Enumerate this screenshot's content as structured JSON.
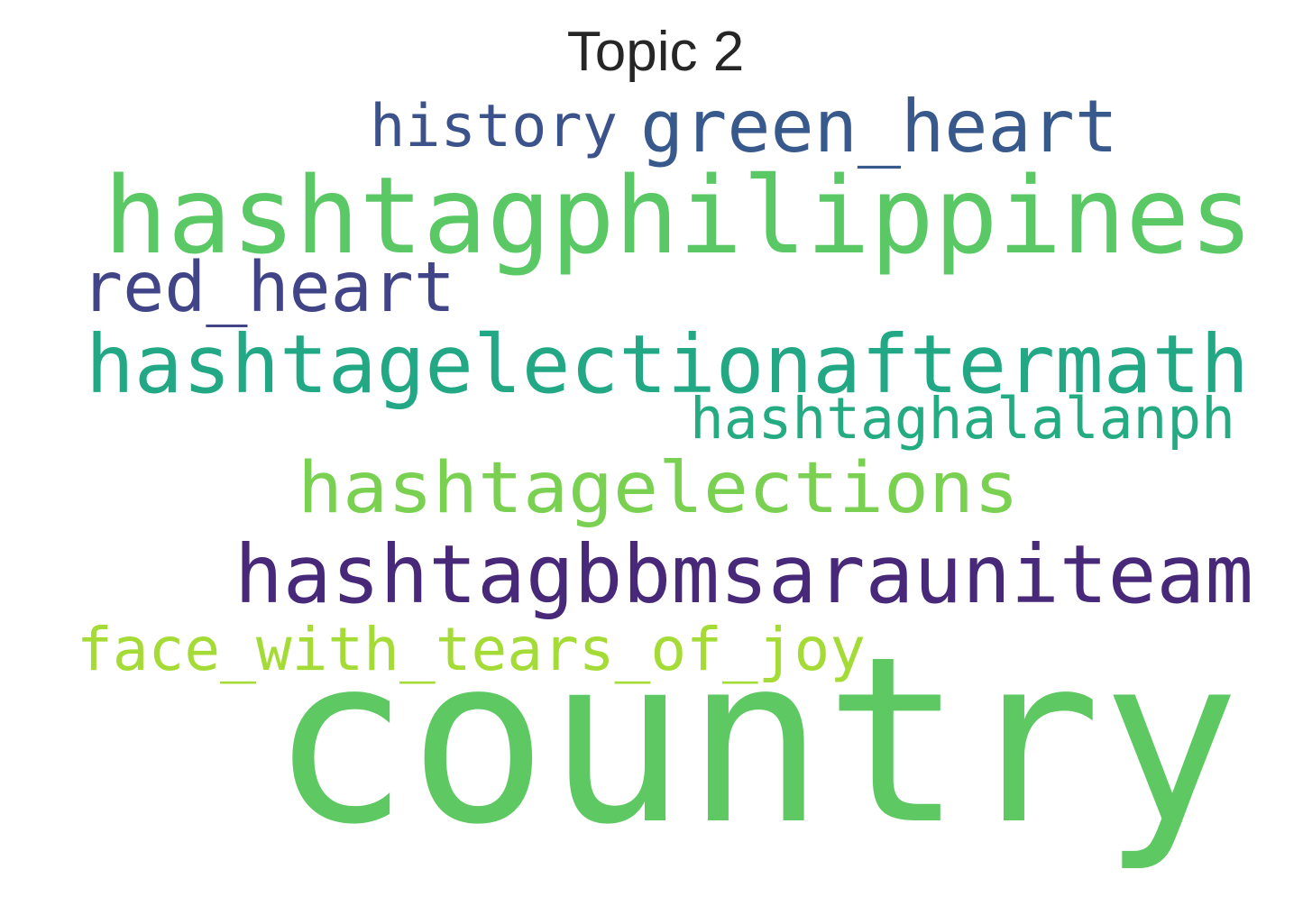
{
  "title": "Topic 2",
  "words": [
    {
      "text": "history",
      "color": "#3b528b"
    },
    {
      "text": "green_heart",
      "color": "#38598c"
    },
    {
      "text": "hashtagphilippines",
      "color": "#5ac864"
    },
    {
      "text": "red_heart",
      "color": "#414487"
    },
    {
      "text": "hashtagelectionaftermath",
      "color": "#22a884"
    },
    {
      "text": "hashtaghalalanph",
      "color": "#25ab82"
    },
    {
      "text": "hashtagelections",
      "color": "#7ad151"
    },
    {
      "text": "hashtagbbmsarauniteam",
      "color": "#482878"
    },
    {
      "text": "face_with_tears_of_joy",
      "color": "#a5db36"
    },
    {
      "text": "country",
      "color": "#5ec962"
    }
  ]
}
